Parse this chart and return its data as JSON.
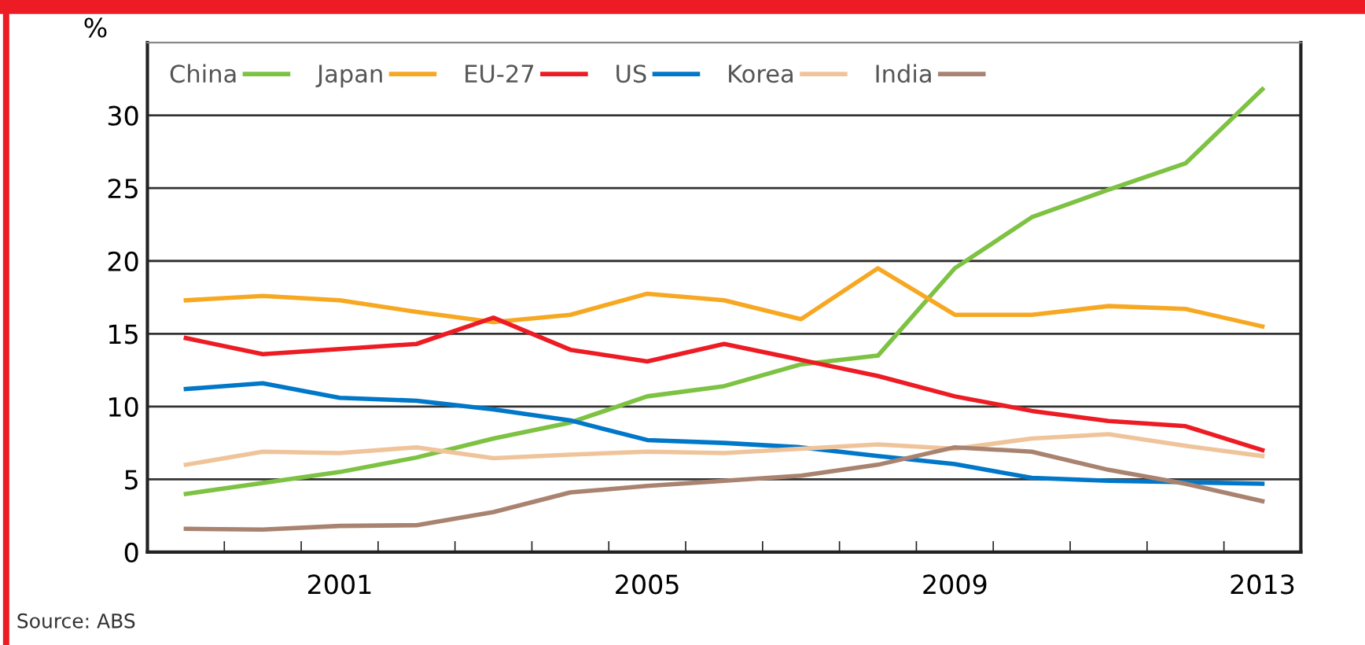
{
  "chart_data": {
    "type": "line",
    "ylabel": "%",
    "annotations": [
      "Source: ABS"
    ],
    "categories": [
      null,
      null,
      "2001",
      null,
      null,
      null,
      "2005",
      null,
      null,
      null,
      "2009",
      null,
      null,
      null,
      "2013"
    ],
    "series": [
      {
        "name": "China",
        "color": "#7dc242",
        "values": [
          4.0,
          4.75,
          5.5,
          6.5,
          7.8,
          8.9,
          10.7,
          11.4,
          12.9,
          13.5,
          19.5,
          23.0,
          24.9,
          26.7,
          31.8
        ]
      },
      {
        "name": "Japan",
        "color": "#f7a823",
        "values": [
          17.3,
          17.6,
          17.3,
          16.5,
          15.8,
          16.3,
          17.75,
          17.3,
          16.0,
          19.5,
          16.3,
          16.3,
          16.9,
          16.7,
          15.5
        ]
      },
      {
        "name": "EU-27",
        "color": "#ed1c24",
        "values": [
          14.7,
          13.6,
          13.95,
          14.3,
          16.1,
          13.9,
          13.1,
          14.3,
          13.2,
          12.1,
          10.7,
          9.7,
          9.0,
          8.65,
          7.0
        ]
      },
      {
        "name": "US",
        "color": "#0077c8",
        "values": [
          11.2,
          11.6,
          10.6,
          10.4,
          9.8,
          9.05,
          7.7,
          7.5,
          7.2,
          6.6,
          6.05,
          5.1,
          4.9,
          4.8,
          4.7
        ]
      },
      {
        "name": "Korea",
        "color": "#f0c49b",
        "values": [
          6.0,
          6.9,
          6.8,
          7.2,
          6.45,
          6.7,
          6.9,
          6.8,
          7.1,
          7.4,
          7.1,
          7.8,
          8.1,
          7.3,
          6.6
        ]
      },
      {
        "name": "India",
        "color": "#a98370",
        "values": [
          1.6,
          1.55,
          1.8,
          1.85,
          2.75,
          4.1,
          4.55,
          4.9,
          5.25,
          6.0,
          7.2,
          6.9,
          5.65,
          4.7,
          3.5
        ]
      }
    ],
    "ylim": [
      0,
      35
    ],
    "yticks": [
      0,
      5,
      10,
      15,
      20,
      25,
      30
    ],
    "grid": "y",
    "legend": "top left",
    "marker": "none",
    "line_style": "solid"
  }
}
